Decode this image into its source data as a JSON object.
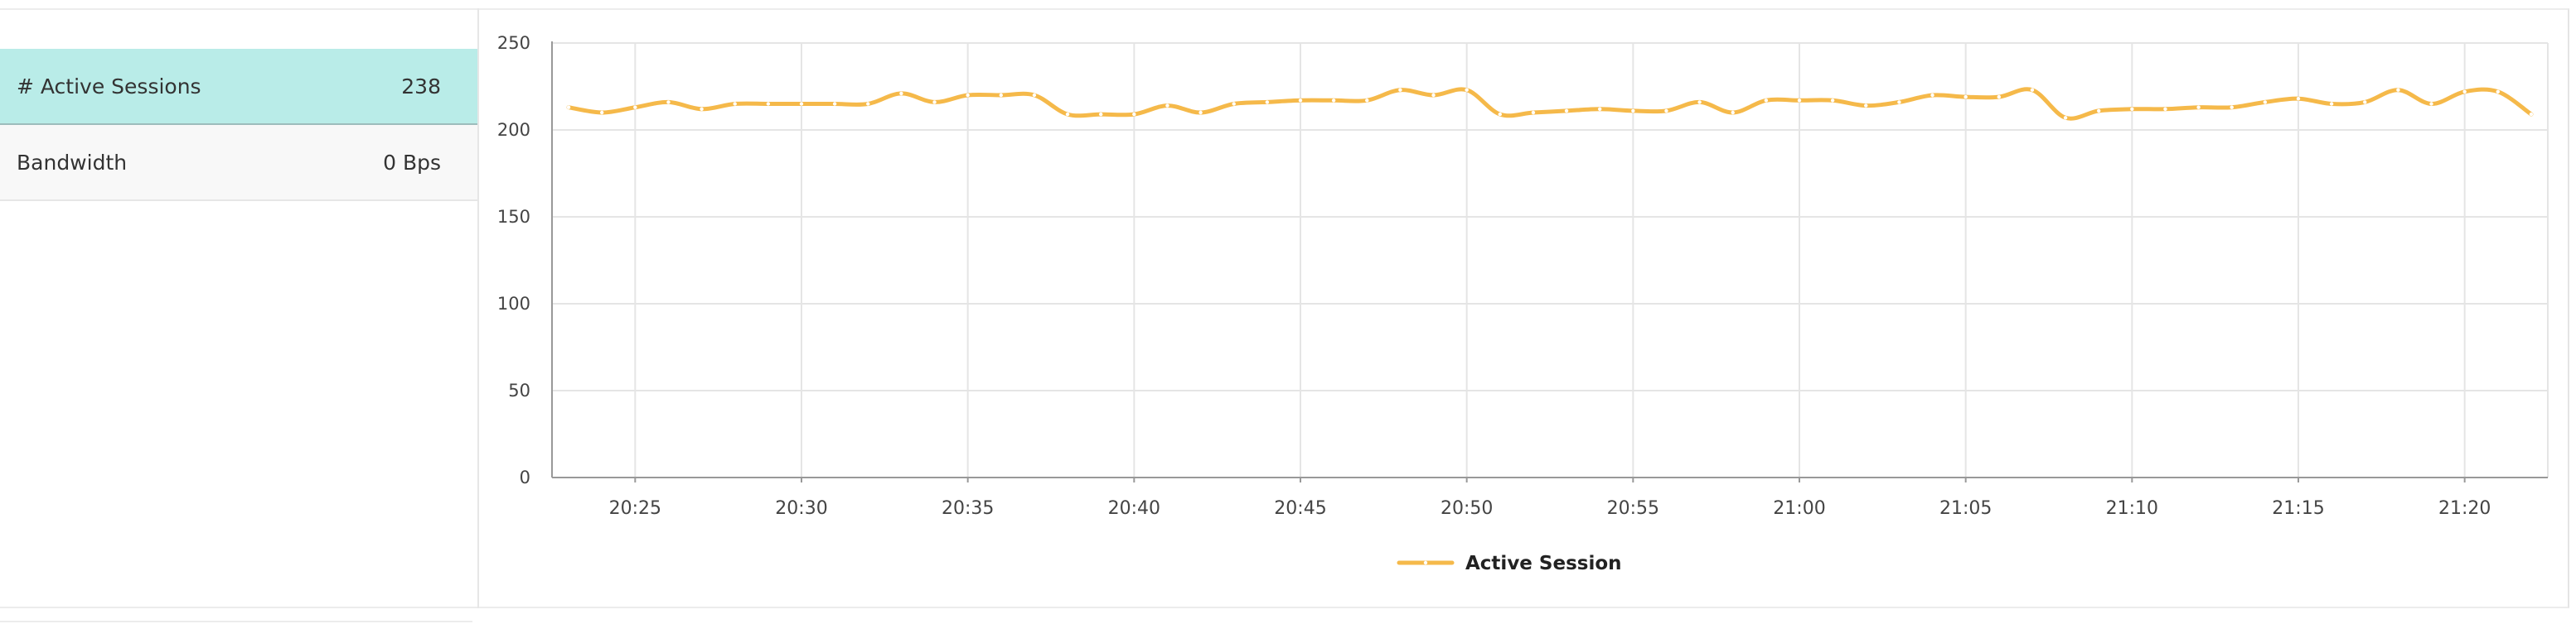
{
  "sidebar": {
    "items": [
      {
        "label": "# Active Sessions",
        "value": "238",
        "selected": true
      },
      {
        "label": "Bandwidth",
        "value": "0 Bps",
        "selected": false
      }
    ]
  },
  "colors": {
    "accent": "#f5b94a",
    "selected_row_bg": "#b9ece8",
    "grid": "#e5e5e5",
    "axis": "#999999"
  },
  "chart_data": {
    "type": "line",
    "title": "",
    "xlabel": "",
    "ylabel": "",
    "ylim": [
      0,
      250
    ],
    "yticks": [
      "0",
      "50",
      "100",
      "150",
      "200",
      "250"
    ],
    "xlim": [
      "20:22:30",
      "21:22:30"
    ],
    "xticks": [
      "20:25",
      "20:30",
      "20:35",
      "20:40",
      "20:45",
      "20:50",
      "20:55",
      "21:00",
      "21:05",
      "21:10",
      "21:15",
      "21:20"
    ],
    "grid": true,
    "legend": "bottom-center",
    "series": [
      {
        "name": "Active Session",
        "color": "#f5b94a",
        "x": [
          "20:23",
          "20:24",
          "20:25",
          "20:26",
          "20:27",
          "20:28",
          "20:29",
          "20:30",
          "20:31",
          "20:32",
          "20:33",
          "20:34",
          "20:35",
          "20:36",
          "20:37",
          "20:38",
          "20:39",
          "20:40",
          "20:41",
          "20:42",
          "20:43",
          "20:44",
          "20:45",
          "20:46",
          "20:47",
          "20:48",
          "20:49",
          "20:50",
          "20:51",
          "20:52",
          "20:53",
          "20:54",
          "20:55",
          "20:56",
          "20:57",
          "20:58",
          "20:59",
          "21:00",
          "21:01",
          "21:02",
          "21:03",
          "21:04",
          "21:05",
          "21:06",
          "21:07",
          "21:08",
          "21:09",
          "21:10",
          "21:11",
          "21:12",
          "21:13",
          "21:14",
          "21:15",
          "21:16",
          "21:17",
          "21:18",
          "21:19",
          "21:20",
          "21:21",
          "21:22"
        ],
        "values": [
          213,
          210,
          213,
          216,
          212,
          215,
          215,
          215,
          215,
          215,
          221,
          216,
          220,
          220,
          220,
          209,
          209,
          209,
          214,
          210,
          215,
          216,
          217,
          217,
          217,
          223,
          220,
          223,
          209,
          210,
          211,
          212,
          211,
          211,
          216,
          210,
          217,
          217,
          217,
          214,
          216,
          220,
          219,
          219,
          223,
          207,
          211,
          212,
          212,
          213,
          213,
          216,
          218,
          215,
          216,
          223,
          215,
          222,
          222,
          209
        ]
      }
    ]
  }
}
